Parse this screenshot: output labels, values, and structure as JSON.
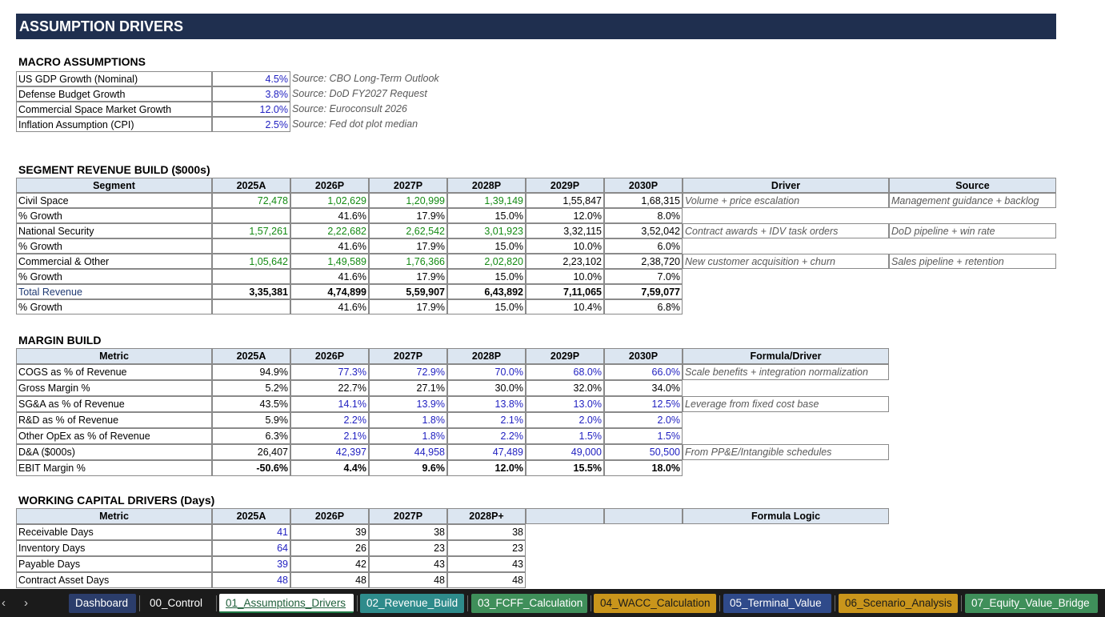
{
  "title": "ASSUMPTION DRIVERS",
  "macro": {
    "heading": "MACRO ASSUMPTIONS",
    "rows": [
      {
        "label": "US GDP Growth (Nominal)",
        "value": "4.5%",
        "source": "Source: CBO Long-Term Outlook"
      },
      {
        "label": "Defense Budget Growth",
        "value": "3.8%",
        "source": "Source: DoD FY2027 Request"
      },
      {
        "label": "Commercial Space Market Growth",
        "value": "12.0%",
        "source": "Source: Euroconsult 2026"
      },
      {
        "label": "Inflation Assumption (CPI)",
        "value": "2.5%",
        "source": "Source: Fed dot plot median"
      }
    ]
  },
  "segment": {
    "heading": "SEGMENT REVENUE BUILD ($000s)",
    "headers": [
      "Segment",
      "2025A",
      "2026P",
      "2027P",
      "2028P",
      "2029P",
      "2030P",
      "Driver",
      "Source"
    ],
    "rows": [
      {
        "label": "Civil Space",
        "vals": [
          "72,478",
          "1,02,629",
          "1,20,999",
          "1,39,149",
          "1,55,847",
          "1,68,315"
        ],
        "driver": "Volume + price escalation",
        "source": "Management guidance + backlog"
      },
      {
        "label": "% Growth",
        "vals": [
          "",
          "41.6%",
          "17.9%",
          "15.0%",
          "12.0%",
          "8.0%"
        ]
      },
      {
        "label": "National Security",
        "vals": [
          "1,57,261",
          "2,22,682",
          "2,62,542",
          "3,01,923",
          "3,32,115",
          "3,52,042"
        ],
        "driver": "Contract awards + IDV task orders",
        "source": "DoD pipeline + win rate"
      },
      {
        "label": "% Growth",
        "vals": [
          "",
          "41.6%",
          "17.9%",
          "15.0%",
          "10.0%",
          "6.0%"
        ]
      },
      {
        "label": "Commercial & Other",
        "vals": [
          "1,05,642",
          "1,49,589",
          "1,76,366",
          "2,02,820",
          "2,23,102",
          "2,38,720"
        ],
        "driver": "New customer acquisition + churn",
        "source": "Sales pipeline + retention"
      },
      {
        "label": "% Growth",
        "vals": [
          "",
          "41.6%",
          "17.9%",
          "15.0%",
          "10.0%",
          "7.0%"
        ]
      },
      {
        "label": "Total Revenue",
        "vals": [
          "3,35,381",
          "4,74,899",
          "5,59,907",
          "6,43,892",
          "7,11,065",
          "7,59,077"
        ]
      },
      {
        "label": "% Growth",
        "vals": [
          "",
          "41.6%",
          "17.9%",
          "15.0%",
          "10.4%",
          "6.8%"
        ]
      }
    ]
  },
  "margin": {
    "heading": "MARGIN BUILD",
    "headers": [
      "Metric",
      "2025A",
      "2026P",
      "2027P",
      "2028P",
      "2029P",
      "2030P",
      "Formula/Driver"
    ],
    "rows": [
      {
        "label": "COGS as % of Revenue",
        "vals": [
          "94.9%",
          "77.3%",
          "72.9%",
          "70.0%",
          "68.0%",
          "66.0%"
        ],
        "driver": "Scale benefits + integration normalization"
      },
      {
        "label": "Gross Margin %",
        "vals": [
          "5.2%",
          "22.7%",
          "27.1%",
          "30.0%",
          "32.0%",
          "34.0%"
        ],
        "driver": ""
      },
      {
        "label": "SG&A as % of Revenue",
        "vals": [
          "43.5%",
          "14.1%",
          "13.9%",
          "13.8%",
          "13.0%",
          "12.5%"
        ],
        "driver": "Leverage from fixed cost base"
      },
      {
        "label": "R&D as % of Revenue",
        "vals": [
          "5.9%",
          "2.2%",
          "1.8%",
          "2.1%",
          "2.0%",
          "2.0%"
        ],
        "driver": ""
      },
      {
        "label": "Other OpEx as % of Revenue",
        "vals": [
          "6.3%",
          "2.1%",
          "1.8%",
          "2.2%",
          "1.5%",
          "1.5%"
        ],
        "driver": ""
      },
      {
        "label": "D&A ($000s)",
        "vals": [
          "26,407",
          "42,397",
          "44,958",
          "47,489",
          "49,000",
          "50,500"
        ],
        "driver": "From PP&E/Intangible schedules"
      },
      {
        "label": "EBIT Margin %",
        "vals": [
          "-50.6%",
          "4.4%",
          "9.6%",
          "12.0%",
          "15.5%",
          "18.0%"
        ],
        "driver": ""
      }
    ]
  },
  "wc": {
    "heading": "WORKING CAPITAL DRIVERS (Days)",
    "headers": [
      "Metric",
      "2025A",
      "2026P",
      "2027P",
      "2028P+",
      "",
      "",
      "Formula Logic"
    ],
    "rows": [
      {
        "label": "Receivable Days",
        "vals": [
          "41",
          "39",
          "38",
          "38"
        ]
      },
      {
        "label": "Inventory Days",
        "vals": [
          "64",
          "26",
          "23",
          "23"
        ]
      },
      {
        "label": "Payable Days",
        "vals": [
          "39",
          "42",
          "43",
          "43"
        ]
      },
      {
        "label": "Contract Asset Days",
        "vals": [
          "48",
          "48",
          "48",
          "48"
        ]
      }
    ]
  },
  "tabs": [
    {
      "label": "Dashboard",
      "color": "#2b3d6b"
    },
    {
      "label": "00_Control",
      "color": "#1b1b1b"
    },
    {
      "label": "01_Assumptions_Drivers",
      "color": "#ffffff",
      "active": true
    },
    {
      "label": "02_Revenue_Build",
      "color": "#2e8b8b"
    },
    {
      "label": "03_FCFF_Calculation",
      "color": "#3f8f5a"
    },
    {
      "label": "04_WACC_Calculation",
      "color": "#c9951b"
    },
    {
      "label": "05_Terminal_Value",
      "color": "#2f4a8a"
    },
    {
      "label": "06_Scenario_Analysis",
      "color": "#c9951b"
    },
    {
      "label": "07_Equity_Value_Bridge",
      "color": "#3f8f5a"
    }
  ]
}
